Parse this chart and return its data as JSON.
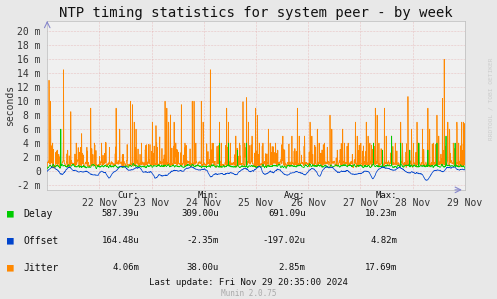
{
  "title": "NTP timing statistics for system peer - by week",
  "ylabel": "seconds",
  "background_color": "#e8e8e8",
  "plot_background": "#f0f0f0",
  "ytick_labels": [
    "-2 m",
    "0",
    "2 m",
    "4 m",
    "6 m",
    "8 m",
    "10 m",
    "12 m",
    "14 m",
    "16 m",
    "18 m",
    "20 m"
  ],
  "ytick_values": [
    -0.002,
    0.0,
    0.002,
    0.004,
    0.006,
    0.008,
    0.01,
    0.012,
    0.014,
    0.016,
    0.018,
    0.02
  ],
  "ylim": [
    -0.0027,
    0.0215
  ],
  "xtick_labels": [
    "22 Nov",
    "23 Nov",
    "24 Nov",
    "25 Nov",
    "26 Nov",
    "27 Nov",
    "28 Nov",
    "29 Nov"
  ],
  "delay_color": "#00cc00",
  "offset_color": "#0044cc",
  "jitter_color": "#ff8800",
  "table_header": [
    "Cur:",
    "Min:",
    "Avg:",
    "Max:"
  ],
  "table_delay": [
    "587.39u",
    "309.00u",
    "691.09u",
    "10.23m"
  ],
  "table_offset": [
    "164.48u",
    "-2.35m",
    "-197.02u",
    "4.82m"
  ],
  "table_jitter": [
    "4.06m",
    "38.00u",
    "2.85m",
    "17.69m"
  ],
  "last_update": "Last update: Fri Nov 29 20:35:00 2024",
  "munin_version": "Munin 2.0.75",
  "rrdtool_label": "RRDTOOL / TOBI OETIKER",
  "title_fontsize": 10,
  "axis_fontsize": 7,
  "legend_fontsize": 7,
  "table_fontsize": 6.5
}
